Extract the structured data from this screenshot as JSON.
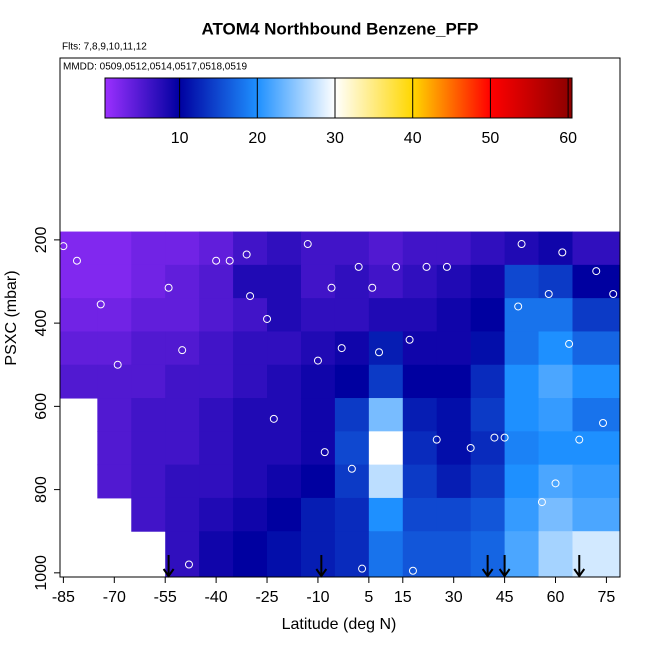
{
  "chart_data": {
    "type": "heatmap",
    "title": "ATOM4 Northbound Benzene_PFP",
    "subtitle": "Flts: 7,8,9,10,11,12",
    "annotation": "MMDD: 0509,0512,0514,0517,0518,0519",
    "xlabel": "Latitude (deg N)",
    "ylabel": "PSXC (mbar)",
    "xlim": [
      -86,
      79
    ],
    "xticks": [
      -85,
      -70,
      -55,
      -40,
      -25,
      -10,
      5,
      15,
      30,
      45,
      60,
      75
    ],
    "ylim": [
      1010,
      -237
    ],
    "yticks": [
      200,
      400,
      600,
      800,
      1000
    ],
    "colorbar_lim": [
      0.4,
      60.5
    ],
    "colorbar_ticks": [
      10,
      20,
      30,
      40,
      50,
      60
    ],
    "colorscale": [
      [
        0.4,
        "#9b30ff"
      ],
      [
        10,
        "#0000a0"
      ],
      [
        20,
        "#1e90ff"
      ],
      [
        30,
        "#ffffff"
      ],
      [
        40,
        "#ffd700"
      ],
      [
        50,
        "#ff0000"
      ],
      [
        60.5,
        "#8b0000"
      ]
    ],
    "lat_bins": [
      -86,
      -75,
      -65,
      -55,
      -45,
      -35,
      -25,
      -15,
      -5,
      5,
      15,
      25,
      35,
      45,
      55,
      65,
      79
    ],
    "pressure_bins": [
      180,
      260,
      340,
      420,
      500,
      580,
      660,
      740,
      820,
      900,
      1010
    ],
    "values": [
      [
        2,
        2,
        3,
        3,
        4,
        6,
        7,
        6,
        6,
        5,
        6,
        6,
        7,
        8,
        9,
        7
      ],
      [
        2,
        2,
        3,
        4,
        5,
        8,
        8,
        6,
        7,
        6,
        7,
        8,
        9,
        15,
        14,
        10
      ],
      [
        3,
        3,
        4,
        4,
        5,
        6,
        8,
        7,
        7,
        8,
        8,
        9,
        10,
        18,
        18,
        14
      ],
      [
        4,
        4,
        5,
        5,
        6,
        7,
        7,
        8,
        9,
        12,
        9,
        9,
        11,
        18,
        20,
        17
      ],
      [
        5,
        5,
        5,
        6,
        6,
        7,
        8,
        9,
        10,
        14,
        10,
        10,
        13,
        20,
        22,
        20
      ],
      [
        null,
        5,
        6,
        6,
        7,
        8,
        8,
        9,
        14,
        24,
        12,
        11,
        14,
        20,
        21,
        18
      ],
      [
        null,
        5,
        6,
        6,
        7,
        8,
        8,
        9,
        15,
        30,
        13,
        11,
        13,
        19,
        20,
        20
      ],
      [
        null,
        5,
        6,
        7,
        7,
        8,
        9,
        10,
        14,
        27,
        14,
        12,
        14,
        20,
        22,
        21
      ],
      [
        null,
        null,
        6,
        7,
        8,
        9,
        10,
        12,
        13,
        20,
        15,
        15,
        16,
        21,
        24,
        22
      ],
      [
        null,
        null,
        null,
        7,
        9,
        10,
        11,
        12,
        13,
        18,
        16,
        16,
        17,
        22,
        26,
        28
      ]
    ],
    "samples": {
      "lat": [
        -85,
        -81,
        -74,
        -69,
        -54,
        -50,
        -40,
        -36,
        -31,
        -30,
        -25,
        -23,
        -13,
        -10,
        -6,
        -3,
        2,
        6,
        8,
        13,
        17,
        22,
        25,
        28,
        35,
        42,
        49,
        50,
        56,
        58,
        62,
        64,
        67,
        72,
        74,
        77,
        -57,
        -48,
        -8,
        0,
        3,
        18,
        45,
        60
      ],
      "pressure": [
        215,
        250,
        355,
        500,
        315,
        465,
        250,
        250,
        235,
        335,
        390,
        630,
        210,
        490,
        315,
        460,
        265,
        315,
        470,
        265,
        440,
        265,
        680,
        265,
        700,
        675,
        360,
        210,
        830,
        330,
        230,
        450,
        680,
        275,
        640,
        330,
        950,
        980,
        710,
        750,
        990,
        995,
        675,
        785
      ]
    },
    "arrows_lat": [
      -54,
      -9,
      40,
      45,
      67
    ]
  }
}
